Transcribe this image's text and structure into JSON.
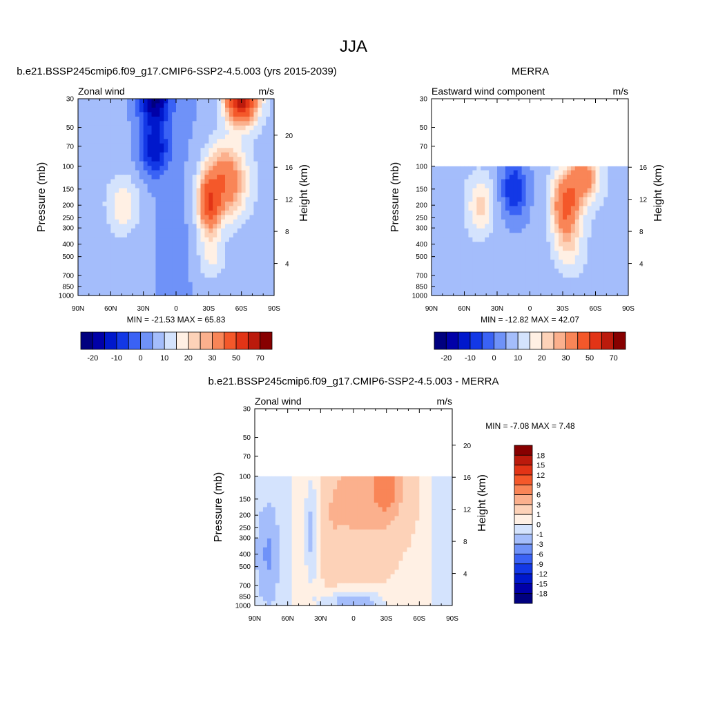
{
  "page_title": "JJA",
  "colors": {
    "diverging_palette": [
      "#00007f",
      "#0000a8",
      "#0018cc",
      "#1338e6",
      "#3a62f5",
      "#6f92f8",
      "#a4bdfb",
      "#d4e3fd",
      "#fff0e4",
      "#fdd2b8",
      "#fbb08d",
      "#f98557",
      "#f4582a",
      "#e23416",
      "#bb1a0c",
      "#870000"
    ],
    "axis": "#000000"
  },
  "chart_data": [
    {
      "id": "model",
      "type": "heatmap",
      "title": "b.e21.BSSP245cmip6.f09_g17.CMIP6-SSP2-4.5.003 (yrs 2015-2039)",
      "left_string": "Zonal wind",
      "right_string": "m/s",
      "ylabel": "Pressure (mb)",
      "ylabel_right": "Height (km)",
      "x_ticks": [
        "90N",
        "60N",
        "30N",
        "0",
        "30S",
        "60S",
        "90S"
      ],
      "y_ticks": [
        "30",
        "50",
        "70",
        "100",
        "150",
        "200",
        "250",
        "300",
        "400",
        "500",
        "700",
        "850",
        "1000"
      ],
      "height_ticks": [
        "20",
        "16",
        "12",
        "8",
        "4"
      ],
      "ylim_mb": [
        1000,
        30
      ],
      "data_top_mb": 30,
      "min_label": "MIN = -21.53  MAX =  65.83",
      "min": -21.53,
      "max": 65.83,
      "colorbar_levels": [
        -25,
        -20,
        -15,
        -10,
        -5,
        0,
        5,
        10,
        15,
        20,
        25,
        30,
        40,
        50,
        60,
        70
      ],
      "colorbar_labels": [
        "-20",
        "-10",
        "0",
        "10",
        "20",
        "30",
        "50",
        "70"
      ],
      "features": [
        {
          "lat": 48,
          "p": 200,
          "value": 18,
          "lat_w": 10,
          "logp_w": 0.35
        },
        {
          "lat": 20,
          "p": 30,
          "value": -21,
          "lat_w": 10,
          "logp_w": 0.35
        },
        {
          "lat": 20,
          "p": 75,
          "value": -14,
          "lat_w": 9,
          "logp_w": 0.3
        },
        {
          "lat": -60,
          "p": 30,
          "value": 65,
          "lat_w": 10,
          "logp_w": 0.3
        },
        {
          "lat": -45,
          "p": 130,
          "value": 38,
          "lat_w": 13,
          "logp_w": 0.45
        },
        {
          "lat": -30,
          "p": 200,
          "value": 40,
          "lat_w": 7,
          "logp_w": 0.35
        },
        {
          "lat": -32,
          "p": 500,
          "value": 15,
          "lat_w": 9,
          "logp_w": 0.3
        }
      ]
    },
    {
      "id": "obs",
      "type": "heatmap",
      "title": "MERRA",
      "left_string": "Eastward wind component",
      "right_string": "m/s",
      "ylabel": "Pressure (mb)",
      "ylabel_right": "Height (km)",
      "x_ticks": [
        "90N",
        "60N",
        "30N",
        "0",
        "30S",
        "60S",
        "90S"
      ],
      "y_ticks": [
        "30",
        "50",
        "70",
        "100",
        "150",
        "200",
        "250",
        "300",
        "400",
        "500",
        "700",
        "850",
        "1000"
      ],
      "height_ticks": [
        "16",
        "12",
        "8",
        "4"
      ],
      "ylim_mb": [
        1000,
        30
      ],
      "data_top_mb": 100,
      "min_label": "MIN = -12.82  MAX =  42.07",
      "min": -12.82,
      "max": 42.07,
      "colorbar_levels": [
        -25,
        -20,
        -15,
        -10,
        -5,
        0,
        5,
        10,
        15,
        20,
        25,
        30,
        40,
        50,
        60,
        70
      ],
      "colorbar_labels": [
        "-20",
        "-10",
        "0",
        "10",
        "20",
        "30",
        "50",
        "70"
      ],
      "features": [
        {
          "lat": 45,
          "p": 200,
          "value": 19,
          "lat_w": 8,
          "logp_w": 0.35
        },
        {
          "lat": 15,
          "p": 150,
          "value": -12,
          "lat_w": 8,
          "logp_w": 0.35
        },
        {
          "lat": -33,
          "p": 200,
          "value": 42,
          "lat_w": 9,
          "logp_w": 0.4
        },
        {
          "lat": -50,
          "p": 120,
          "value": 32,
          "lat_w": 9,
          "logp_w": 0.3
        },
        {
          "lat": -35,
          "p": 450,
          "value": 14,
          "lat_w": 10,
          "logp_w": 0.3
        }
      ]
    },
    {
      "id": "diff",
      "type": "heatmap",
      "title": "b.e21.BSSP245cmip6.f09_g17.CMIP6-SSP2-4.5.003 - MERRA",
      "left_string": "Zonal wind",
      "right_string": "m/s",
      "ylabel": "Pressure (mb)",
      "ylabel_right": "Height (km)",
      "x_ticks": [
        "90N",
        "60N",
        "30N",
        "0",
        "30S",
        "60S",
        "90S"
      ],
      "y_ticks": [
        "30",
        "50",
        "70",
        "100",
        "150",
        "200",
        "250",
        "300",
        "400",
        "500",
        "700",
        "850",
        "1000"
      ],
      "height_ticks": [
        "20",
        "16",
        "12",
        "8",
        "4"
      ],
      "ylim_mb": [
        1000,
        30
      ],
      "data_top_mb": 100,
      "min_label": "MIN =  -7.08  MAX =   7.48",
      "min": -7.08,
      "max": 7.48,
      "colorbar_levels": [
        -21,
        -18,
        -15,
        -12,
        -9,
        -6,
        -3,
        -1,
        0,
        1,
        3,
        6,
        9,
        12,
        15,
        18,
        21
      ],
      "colorbar_labels": [
        "18",
        "15",
        "12",
        "9",
        "6",
        "3",
        "1",
        "0",
        "-1",
        "-3",
        "-6",
        "-9",
        "-12",
        "-15",
        "-18"
      ],
      "features": [
        {
          "lat": -8,
          "p": 150,
          "value": 4.5,
          "lat_w": 22,
          "logp_w": 0.5
        },
        {
          "lat": -30,
          "p": 120,
          "value": 7,
          "lat_w": 8,
          "logp_w": 0.35
        },
        {
          "lat": 20,
          "p": 300,
          "value": 2,
          "lat_w": 6,
          "logp_w": 0.5
        },
        {
          "lat": 38,
          "p": 250,
          "value": -1.5,
          "lat_w": 5,
          "logp_w": 0.7
        },
        {
          "lat": 78,
          "p": 400,
          "value": -2,
          "lat_w": 6,
          "logp_w": 0.5
        },
        {
          "lat": 0,
          "p": 950,
          "value": -2,
          "lat_w": 20,
          "logp_w": 0.15
        }
      ]
    }
  ]
}
